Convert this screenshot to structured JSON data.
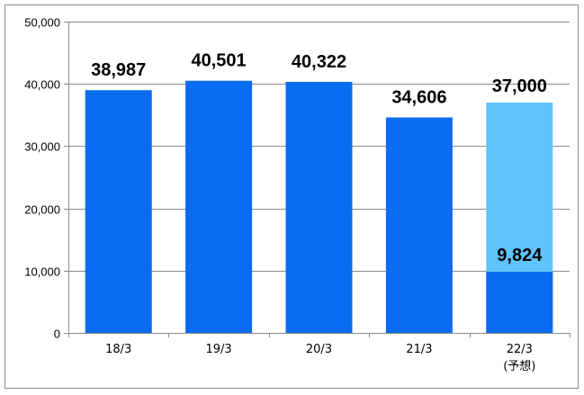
{
  "chart_data": {
    "type": "bar",
    "title": "",
    "xlabel": "",
    "ylabel": "",
    "ylim": [
      0,
      50000
    ],
    "yticks": [
      "0",
      "10,000",
      "20,000",
      "30,000",
      "40,000",
      "50,000"
    ],
    "ytick_values": [
      0,
      10000,
      20000,
      30000,
      40000,
      50000
    ],
    "grid": true,
    "legend": "none",
    "categories": [
      "18/3",
      "19/3",
      "20/3",
      "21/3",
      "22/3"
    ],
    "category_sublabels": [
      "",
      "",
      "",
      "",
      "(予想)"
    ],
    "values": [
      38987,
      40501,
      40322,
      34606,
      9824
    ],
    "forecast_totals": [
      null,
      null,
      null,
      null,
      37000
    ],
    "data_labels": [
      "38,987",
      "40,501",
      "40,322",
      "34,606",
      "9,824"
    ],
    "forecast_labels": [
      "",
      "",
      "",
      "",
      "37,000"
    ],
    "colors": {
      "actual": "#0a6cf0",
      "forecast": "#5ec4fb",
      "grid": "#8c8c8c",
      "frame": "#8c8c8c"
    }
  }
}
